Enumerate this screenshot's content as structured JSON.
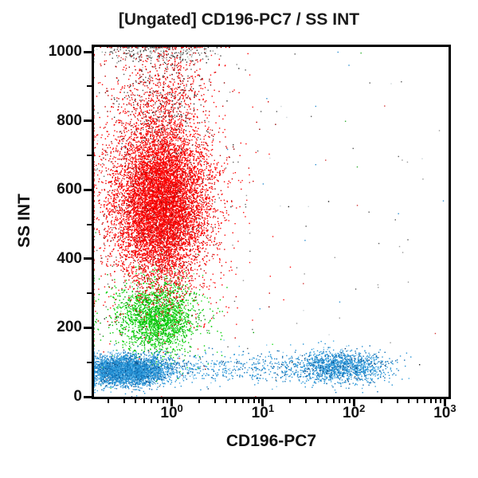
{
  "title": "[Ungated] CD196-PC7 / SS INT",
  "axes": {
    "x": {
      "label": "CD196-PC7",
      "scale": "log",
      "min_log10": -0.854,
      "max_log10": 3.04,
      "tick_label_base": "10",
      "major_tick_exponents": [
        0,
        1,
        2,
        3
      ],
      "minor_decades": [
        -1,
        0,
        1,
        2
      ],
      "minor_mantissas": [
        2,
        3,
        4,
        5,
        6,
        7,
        8,
        9
      ]
    },
    "y": {
      "label": "SS INT",
      "scale": "linear",
      "min": 0,
      "max": 1014,
      "major_ticks": [
        0,
        200,
        400,
        600,
        800,
        1000
      ],
      "minor_ticks": [
        100,
        300,
        500,
        700,
        900
      ]
    }
  },
  "colors": {
    "background": "#ffffff",
    "frame": "#000000",
    "text": "#111111",
    "population_red": "#ff0000",
    "population_green": "#00cc00",
    "population_blue": "#2492d6",
    "debris_gray": "#5a5a5a"
  },
  "chart_data": {
    "type": "scatter",
    "title": "[Ungated] CD196-PC7 / SS INT",
    "xlabel": "CD196-PC7",
    "ylabel": "SS INT",
    "x_scale": "log",
    "x_range_log10": [
      -0.854,
      3.04
    ],
    "ylim": [
      0,
      1014
    ],
    "grid": false,
    "legend": "none",
    "seed": 42,
    "dot_size_px": 1.4,
    "populations": [
      {
        "name": "scattered-debris",
        "description": "sparse single events across plot",
        "n": 120,
        "x": {
          "dist": "uniform",
          "min": -0.85,
          "max": 3.0
        },
        "y": {
          "dist": "uniform",
          "min": 5,
          "max": 1005
        },
        "palette": [
          [
            "#5a5a5a",
            30
          ],
          [
            "#979797",
            22
          ],
          [
            "#cdd5d9",
            14
          ],
          [
            "#d23535",
            10
          ],
          [
            "#2fae2f",
            8
          ],
          [
            "#2e8fd0",
            10
          ],
          [
            "#1d1d1d",
            6
          ]
        ]
      },
      {
        "name": "saturated-top-events",
        "description": "off-scale high SS events hugging top frame",
        "n": 250,
        "x": {
          "dist": "normal",
          "mean": -0.15,
          "sd": 0.33
        },
        "y": {
          "dist": "normal",
          "mean": 996,
          "sd": 14
        },
        "clamp_y": [
          950,
          1012
        ],
        "palette": [
          [
            "#4a4a4a",
            33
          ],
          [
            "#8a8a8a",
            25
          ],
          [
            "#262626",
            12
          ],
          [
            "#9ab5a8",
            12
          ],
          [
            "#c7d2cc",
            8
          ],
          [
            "#b05050",
            10
          ]
        ]
      },
      {
        "name": "monocytes-halo",
        "description": "sparse green fringe",
        "n": 260,
        "x": {
          "dist": "normal",
          "mean": -0.25,
          "sd": 0.4
        },
        "y": {
          "dist": "normal",
          "mean": 230,
          "sd": 90
        },
        "palette": [
          [
            "#00cc00",
            55
          ],
          [
            "#22dd22",
            20
          ],
          [
            "#009900",
            15
          ],
          [
            "#6a6a6a",
            10
          ]
        ]
      },
      {
        "name": "monocytes",
        "description": "green population, CD196- mid SS",
        "n": 2000,
        "x": {
          "dist": "normal",
          "mean": -0.16,
          "sd": 0.21
        },
        "y": {
          "dist": "normal",
          "mean": 228,
          "sd": 52
        },
        "palette": [
          [
            "#00cc00",
            62
          ],
          [
            "#22dd22",
            18
          ],
          [
            "#009900",
            15
          ],
          [
            "#77e877",
            5
          ]
        ]
      },
      {
        "name": "granulocytes-halo",
        "description": "sparse red fringe around main red cluster",
        "n": 900,
        "x": {
          "dist": "normal",
          "mean": -0.16,
          "sd": 0.5
        },
        "y": {
          "dist": "normal",
          "mean": 560,
          "sd": 195
        },
        "palette": [
          [
            "#ff1010",
            55
          ],
          [
            "#d40000",
            20
          ],
          [
            "#8c0000",
            10
          ],
          [
            "#666666",
            15
          ]
        ]
      },
      {
        "name": "granulocytes",
        "description": "dense red population, CD196- high SS",
        "n": 9000,
        "x": {
          "dist": "normal",
          "mean": -0.12,
          "sd": 0.26
        },
        "y": {
          "dist": "normal",
          "mean": 565,
          "sd": 118
        },
        "palette": [
          [
            "#ff0000",
            70
          ],
          [
            "#ea0000",
            12
          ],
          [
            "#c80000",
            10
          ],
          [
            "#8c0000",
            5
          ],
          [
            "#ff4040",
            3
          ]
        ]
      },
      {
        "name": "granulocytes-high-tail",
        "description": "upper tail of red population toward SS 1000",
        "n": 850,
        "x": {
          "dist": "normal",
          "mean": -0.1,
          "sd": 0.3
        },
        "y": {
          "dist": "normal",
          "mean": 880,
          "sd": 78
        },
        "palette": [
          [
            "#ff0000",
            45
          ],
          [
            "#c80000",
            20
          ],
          [
            "#8c0000",
            15
          ],
          [
            "#555555",
            10
          ],
          [
            "#2f2f2f",
            10
          ]
        ]
      },
      {
        "name": "lymphocytes-band-bridge",
        "description": "low-SS blue band between negative and positive clusters",
        "n": 650,
        "x": {
          "dist": "uniform",
          "min": -0.25,
          "max": 1.8
        },
        "y": {
          "dist": "normal",
          "mean": 84,
          "sd": 23
        },
        "palette": [
          [
            "#2492d6",
            50
          ],
          [
            "#45a9e2",
            18
          ],
          [
            "#0f6cb2",
            22
          ],
          [
            "#83c6ec",
            6
          ],
          [
            "#093f77",
            4
          ]
        ]
      },
      {
        "name": "lymphocytes-cd196-negative",
        "description": "dense blue cluster at left edge, low SS",
        "n": 4000,
        "x": {
          "dist": "normal",
          "mean": -0.5,
          "sd": 0.22
        },
        "y": {
          "dist": "normal",
          "mean": 76,
          "sd": 21
        },
        "palette": [
          [
            "#2492d6",
            50
          ],
          [
            "#45a9e2",
            18
          ],
          [
            "#0f6cb2",
            22
          ],
          [
            "#83c6ec",
            6
          ],
          [
            "#093f77",
            4
          ]
        ]
      },
      {
        "name": "lymphocytes-cd196-positive",
        "description": "blue cluster near 10^2, low SS",
        "n": 1300,
        "x": {
          "dist": "normal",
          "mean": 1.88,
          "sd": 0.24
        },
        "y": {
          "dist": "normal",
          "mean": 88,
          "sd": 23
        },
        "palette": [
          [
            "#2492d6",
            50
          ],
          [
            "#45a9e2",
            18
          ],
          [
            "#0f6cb2",
            22
          ],
          [
            "#83c6ec",
            6
          ],
          [
            "#093f77",
            4
          ]
        ]
      }
    ]
  }
}
